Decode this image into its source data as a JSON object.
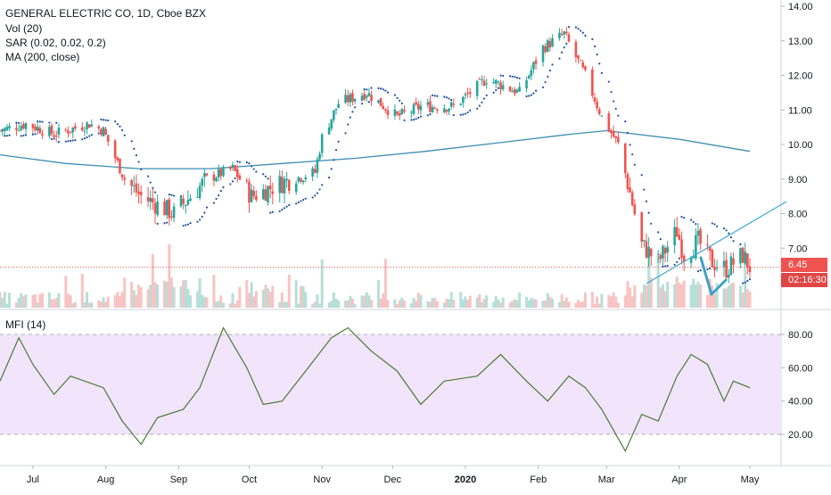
{
  "legend": {
    "symbol": "GENERAL ELECTRIC CO, 1D, Cboe BZX",
    "vol": "Vol (20)",
    "sar": "SAR (0.02, 0.02, 0.2)",
    "ma": "MA (200, close)",
    "mfi": "MFI (14)"
  },
  "price_tag": {
    "last": "6.45",
    "countdown": "02:16:30"
  },
  "colors": {
    "up": "#26a69a",
    "down": "#ef5350",
    "ma": "#3d8fb3",
    "sar": "#1e50a0",
    "mfi": "#4c7a36",
    "mfi_band": "#f1e4fb",
    "trendline": "#3da8d6",
    "arrow": "#3fa0c8"
  },
  "chart_data": [
    {
      "type": "candlestick",
      "title": "GENERAL ELECTRIC CO, 1D, Cboe BZX",
      "y_ticks": [
        "14.00",
        "13.00",
        "12.00",
        "11.00",
        "10.00",
        "9.00",
        "8.00",
        "7.00"
      ],
      "ylim": [
        5.2,
        14.1
      ],
      "x_ticks": [
        "Jul",
        "Aug",
        "Sep",
        "Oct",
        "Nov",
        "Dec",
        "2020",
        "Feb",
        "Mar",
        "Apr",
        "May"
      ],
      "close_path": [
        {
          "x": "2019-06-17",
          "y": 10.4
        },
        {
          "x": "2019-06-28",
          "y": 10.6
        },
        {
          "x": "2019-07-10",
          "y": 10.3
        },
        {
          "x": "2019-07-25",
          "y": 10.6
        },
        {
          "x": "2019-07-31",
          "y": 10.4
        },
        {
          "x": "2019-08-09",
          "y": 9.0
        },
        {
          "x": "2019-08-16",
          "y": 8.5
        },
        {
          "x": "2019-08-30",
          "y": 8.0
        },
        {
          "x": "2019-09-13",
          "y": 9.0
        },
        {
          "x": "2019-09-24",
          "y": 9.3
        },
        {
          "x": "2019-10-02",
          "y": 8.5
        },
        {
          "x": "2019-10-15",
          "y": 8.9
        },
        {
          "x": "2019-10-29",
          "y": 9.2
        },
        {
          "x": "2019-11-01",
          "y": 10.2
        },
        {
          "x": "2019-11-08",
          "y": 11.2
        },
        {
          "x": "2019-11-20",
          "y": 11.5
        },
        {
          "x": "2019-12-03",
          "y": 10.8
        },
        {
          "x": "2019-12-13",
          "y": 11.1
        },
        {
          "x": "2019-12-27",
          "y": 11.1
        },
        {
          "x": "2020-01-10",
          "y": 11.9
        },
        {
          "x": "2020-01-24",
          "y": 11.5
        },
        {
          "x": "2020-02-03",
          "y": 12.8
        },
        {
          "x": "2020-02-12",
          "y": 13.2
        },
        {
          "x": "2020-02-21",
          "y": 12.0
        },
        {
          "x": "2020-02-28",
          "y": 10.8
        },
        {
          "x": "2020-03-06",
          "y": 10.0
        },
        {
          "x": "2020-03-11",
          "y": 8.6
        },
        {
          "x": "2020-03-16",
          "y": 7.1
        },
        {
          "x": "2020-03-23",
          "y": 6.6
        },
        {
          "x": "2020-03-31",
          "y": 7.5
        },
        {
          "x": "2020-04-03",
          "y": 6.8
        },
        {
          "x": "2020-04-09",
          "y": 7.2
        },
        {
          "x": "2020-04-15",
          "y": 6.6
        },
        {
          "x": "2020-04-21",
          "y": 6.4
        },
        {
          "x": "2020-04-28",
          "y": 6.8
        },
        {
          "x": "2020-05-01",
          "y": 6.45
        }
      ],
      "series": [
        {
          "name": "MA (200, close)",
          "points": [
            {
              "x": "2019-06-17",
              "y": 9.7
            },
            {
              "x": "2019-07-15",
              "y": 9.45
            },
            {
              "x": "2019-08-15",
              "y": 9.3
            },
            {
              "x": "2019-09-15",
              "y": 9.3
            },
            {
              "x": "2019-10-15",
              "y": 9.45
            },
            {
              "x": "2019-11-15",
              "y": 9.6
            },
            {
              "x": "2019-12-15",
              "y": 9.8
            },
            {
              "x": "2020-01-15",
              "y": 10.05
            },
            {
              "x": "2020-02-15",
              "y": 10.3
            },
            {
              "x": "2020-03-01",
              "y": 10.4
            },
            {
              "x": "2020-04-01",
              "y": 10.15
            },
            {
              "x": "2020-05-01",
              "y": 9.8
            }
          ]
        }
      ],
      "last_price": 6.45
    },
    {
      "type": "line",
      "title": "MFI (14)",
      "y_ticks": [
        "80.00",
        "60.00",
        "40.00",
        "20.00"
      ],
      "ylim": [
        5,
        90
      ],
      "bands": [
        20,
        80
      ],
      "series": [
        {
          "name": "MFI (14)",
          "points": [
            {
              "x": "2019-06-17",
              "y": 52
            },
            {
              "x": "2019-06-25",
              "y": 78
            },
            {
              "x": "2019-07-01",
              "y": 62
            },
            {
              "x": "2019-07-10",
              "y": 44
            },
            {
              "x": "2019-07-17",
              "y": 55
            },
            {
              "x": "2019-07-31",
              "y": 48
            },
            {
              "x": "2019-08-08",
              "y": 28
            },
            {
              "x": "2019-08-16",
              "y": 14
            },
            {
              "x": "2019-08-23",
              "y": 30
            },
            {
              "x": "2019-09-03",
              "y": 35
            },
            {
              "x": "2019-09-10",
              "y": 48
            },
            {
              "x": "2019-09-20",
              "y": 84
            },
            {
              "x": "2019-09-30",
              "y": 60
            },
            {
              "x": "2019-10-07",
              "y": 38
            },
            {
              "x": "2019-10-15",
              "y": 40
            },
            {
              "x": "2019-10-25",
              "y": 58
            },
            {
              "x": "2019-11-05",
              "y": 78
            },
            {
              "x": "2019-11-12",
              "y": 84
            },
            {
              "x": "2019-11-22",
              "y": 70
            },
            {
              "x": "2019-12-03",
              "y": 58
            },
            {
              "x": "2019-12-13",
              "y": 38
            },
            {
              "x": "2019-12-23",
              "y": 52
            },
            {
              "x": "2020-01-06",
              "y": 55
            },
            {
              "x": "2020-01-16",
              "y": 68
            },
            {
              "x": "2020-01-27",
              "y": 52
            },
            {
              "x": "2020-02-05",
              "y": 40
            },
            {
              "x": "2020-02-14",
              "y": 55
            },
            {
              "x": "2020-02-21",
              "y": 48
            },
            {
              "x": "2020-02-28",
              "y": 35
            },
            {
              "x": "2020-03-09",
              "y": 10
            },
            {
              "x": "2020-03-16",
              "y": 32
            },
            {
              "x": "2020-03-23",
              "y": 28
            },
            {
              "x": "2020-03-31",
              "y": 55
            },
            {
              "x": "2020-04-06",
              "y": 68
            },
            {
              "x": "2020-04-13",
              "y": 62
            },
            {
              "x": "2020-04-20",
              "y": 40
            },
            {
              "x": "2020-04-24",
              "y": 52
            },
            {
              "x": "2020-05-01",
              "y": 48
            }
          ]
        }
      ]
    }
  ]
}
